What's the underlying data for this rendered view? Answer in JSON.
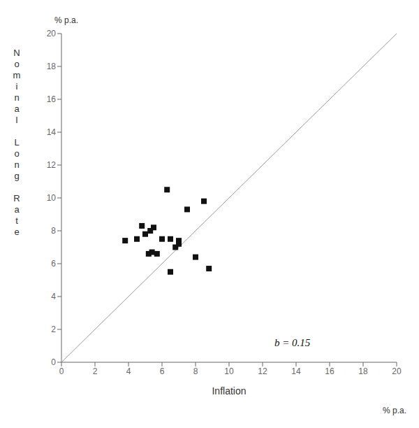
{
  "chart_data": {
    "type": "scatter",
    "xlabel": "Inflation",
    "ylabel": "Nominal Long Rate",
    "x_unit": "% p.a.",
    "y_unit": "% p.a.",
    "xlim": [
      0,
      20
    ],
    "ylim": [
      0,
      20
    ],
    "xticks": [
      0,
      2,
      4,
      6,
      8,
      10,
      12,
      14,
      16,
      18,
      20
    ],
    "yticks": [
      0,
      2,
      4,
      6,
      8,
      10,
      12,
      14,
      16,
      18,
      20
    ],
    "grid": false,
    "annotations": [
      {
        "text": "b = 0.15",
        "x": 12.5,
        "y": 1.2
      }
    ],
    "series": [
      {
        "type": "line",
        "color": "#999999",
        "line_style": "solid",
        "x": [
          0,
          20
        ],
        "values": [
          0,
          20
        ]
      },
      {
        "type": "scatter",
        "marker": "square",
        "color": "#111111",
        "x": [
          3.8,
          4.5,
          4.8,
          5.0,
          5.2,
          5.3,
          5.4,
          5.5,
          5.7,
          6.0,
          6.3,
          6.5,
          6.5,
          6.8,
          7.0,
          7.0,
          7.5,
          8.0,
          8.5,
          8.8
        ],
        "values": [
          7.4,
          7.5,
          8.3,
          7.8,
          6.6,
          8.0,
          6.7,
          8.2,
          6.6,
          7.5,
          10.5,
          5.5,
          7.5,
          7.0,
          7.4,
          7.2,
          9.3,
          6.4,
          9.8,
          5.7
        ]
      }
    ]
  }
}
